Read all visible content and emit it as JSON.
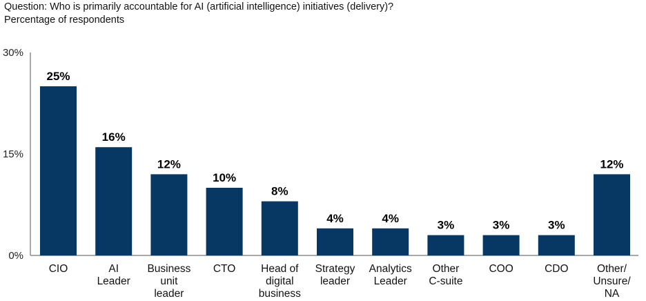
{
  "header": {
    "question": "Question: Who is primarily accountable for AI (artificial intelligence) initiatives (delivery)?",
    "subtitle": "Percentage of respondents"
  },
  "chart_data": {
    "type": "bar",
    "title": "Question: Who is primarily accountable for AI (artificial intelligence) initiatives (delivery)?",
    "ylabel": "Percentage of respondents",
    "xlabel": "",
    "categories": [
      "CIO",
      "AI\nLeader",
      "Business\nunit\nleader",
      "CTO",
      "Head of\ndigital\nbusiness",
      "Strategy\nleader",
      "Analytics\nLeader",
      "Other\nC-suite",
      "COO",
      "CDO",
      "Other/\nUnsure/\nNA"
    ],
    "values": [
      25,
      16,
      12,
      10,
      8,
      4,
      4,
      3,
      3,
      3,
      12
    ],
    "data_labels": [
      "25%",
      "16%",
      "12%",
      "10%",
      "8%",
      "4%",
      "4%",
      "3%",
      "3%",
      "3%",
      "12%"
    ],
    "ylim": [
      0,
      30
    ],
    "yticks": [
      0,
      15,
      30
    ],
    "ytick_labels": [
      "0%",
      "15%",
      "30%"
    ],
    "grid": false,
    "bar_color": "#073763",
    "axis_color": "#8c8c8c"
  }
}
